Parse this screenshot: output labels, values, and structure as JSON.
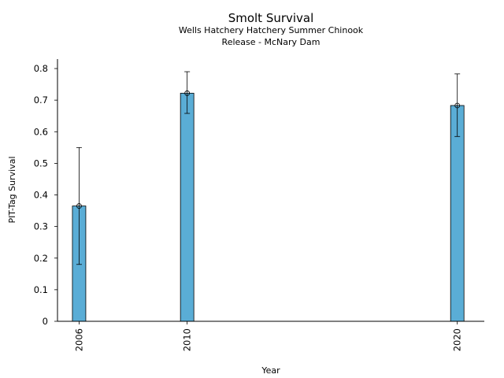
{
  "chart_data": {
    "type": "bar",
    "title": "Smolt Survival",
    "subtitle_lines": [
      "Wells Hatchery Hatchery Summer Chinook",
      "Release - McNary Dam"
    ],
    "xlabel": "Year",
    "ylabel": "PIT-Tag Survival",
    "x": [
      2006,
      2010,
      2020
    ],
    "x_tick_labels": [
      "2006",
      "2010",
      "2020"
    ],
    "values": [
      0.365,
      0.722,
      0.683
    ],
    "error_low": [
      0.18,
      0.658,
      0.585
    ],
    "error_high": [
      0.55,
      0.79,
      0.783
    ],
    "xlim": [
      2005.2,
      2021.0
    ],
    "ylim": [
      0,
      0.83
    ],
    "y_ticks": [
      0,
      0.1,
      0.2,
      0.3,
      0.4,
      0.5,
      0.6,
      0.7,
      0.8
    ],
    "y_tick_labels": [
      "0",
      "0.1",
      "0.2",
      "0.3",
      "0.4",
      "0.5",
      "0.6",
      "0.7",
      "0.8"
    ],
    "bar_color": "#5aadd6",
    "edge_color": "#000000",
    "grid": false,
    "legend": "none"
  }
}
